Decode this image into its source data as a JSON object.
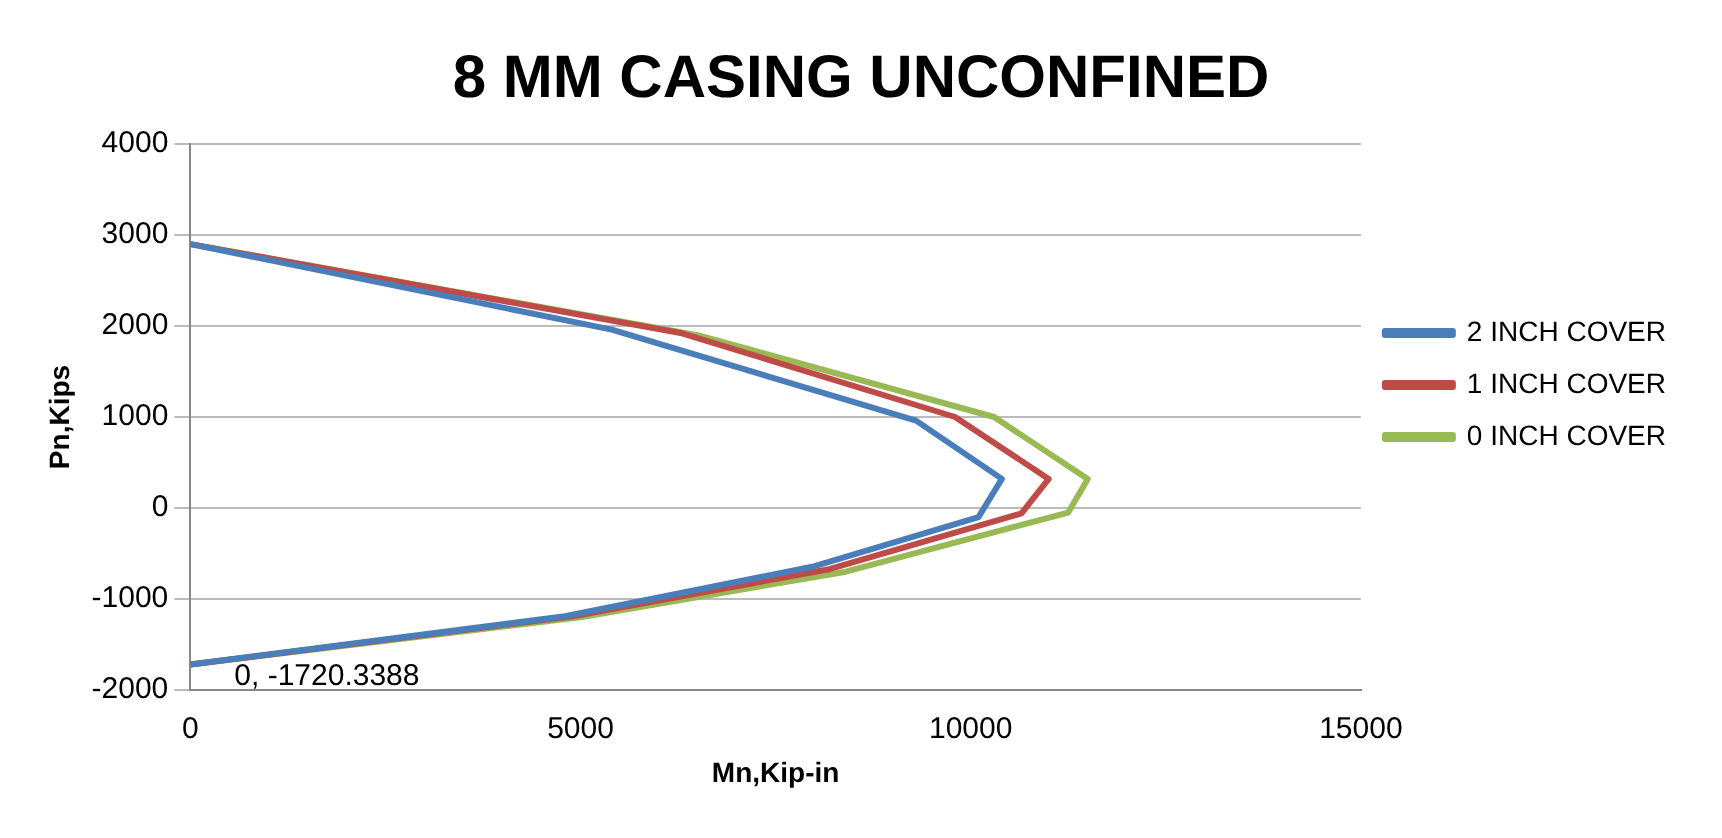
{
  "chart_data": {
    "type": "line",
    "title": "8 MM CASING UNCONFINED",
    "xlabel": "Mn,Kip-in",
    "ylabel": "Pn,Kips",
    "series": [
      {
        "name": "2 INCH COVER",
        "color": "#4a7ebb",
        "x": [
          0,
          5400,
          9300,
          10400,
          10100,
          8000,
          4800,
          0
        ],
        "values": [
          2900,
          1960,
          960,
          320,
          -100,
          -640,
          -1190,
          -1720.3388
        ]
      },
      {
        "name": "1 INCH COVER",
        "color": "#be4b48",
        "x": [
          0,
          6300,
          9800,
          11000,
          10650,
          8200,
          4900,
          0
        ],
        "values": [
          2900,
          1920,
          1000,
          320,
          -60,
          -670,
          -1190,
          -1720.3388
        ]
      },
      {
        "name": "0 INCH COVER",
        "color": "#98b954",
        "x": [
          0,
          6500,
          10300,
          11500,
          11250,
          8400,
          5000,
          0
        ],
        "values": [
          2900,
          1900,
          1000,
          320,
          -50,
          -700,
          -1200,
          -1720.3388
        ]
      }
    ],
    "xlim": [
      0,
      15000
    ],
    "xticks": [
      0,
      5000,
      10000,
      15000
    ],
    "ylim": [
      -2000,
      4000
    ],
    "yticks": [
      -2000,
      -1000,
      0,
      1000,
      2000,
      3000,
      4000
    ],
    "grid": "y",
    "legend": "right",
    "marker": "none",
    "line_style": "solid",
    "annotations": [
      {
        "text": "0, -1720.3388",
        "x": 0,
        "y": -1720.3388
      }
    ]
  }
}
